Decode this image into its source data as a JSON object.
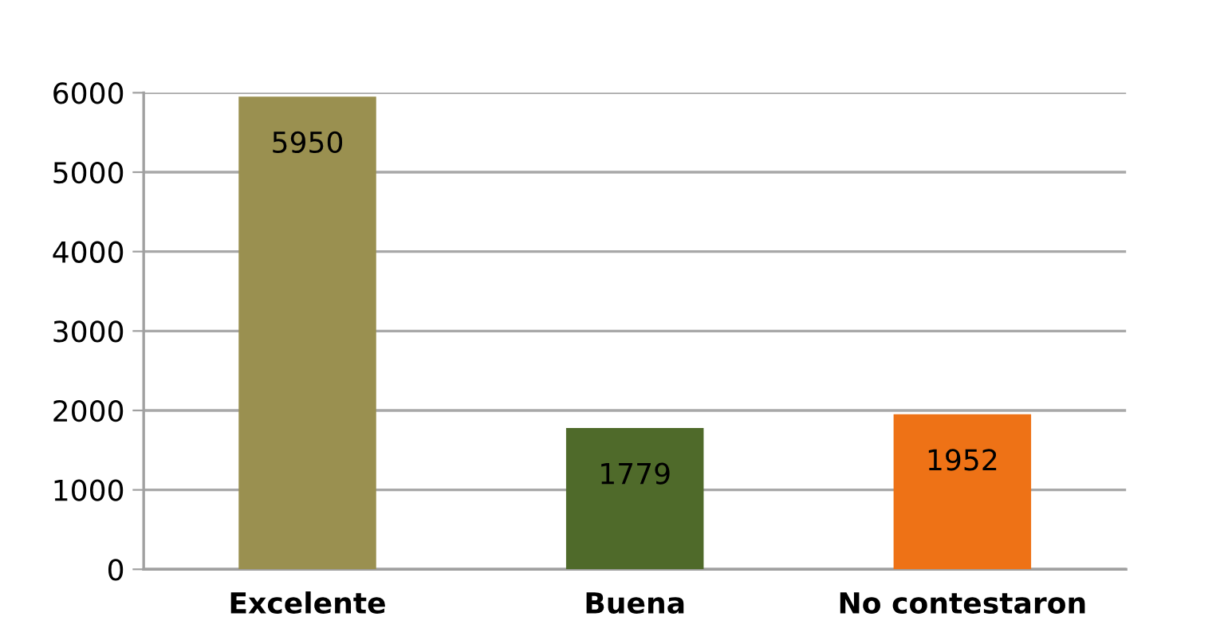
{
  "chart_data": {
    "type": "bar",
    "categories": [
      "Excelente",
      "Buena",
      "No contestaron"
    ],
    "values": [
      5950,
      1779,
      1952
    ],
    "colors": [
      "#9a9050",
      "#4f6a2a",
      "#ee7216"
    ],
    "ylim": [
      0,
      6000
    ],
    "yticks": [
      0,
      1000,
      2000,
      3000,
      4000,
      5000,
      6000
    ],
    "grid": "y",
    "data_labels": true
  }
}
